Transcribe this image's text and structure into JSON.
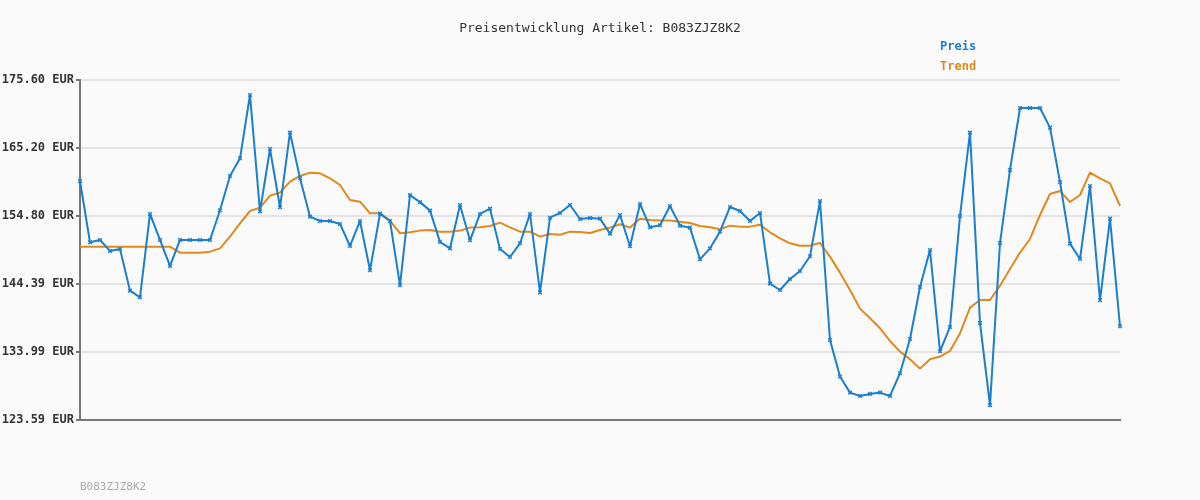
{
  "chart_data": {
    "type": "line",
    "title": "Preisentwicklung Artikel: B083ZJZ8K2",
    "categories": [
      null,
      null,
      null,
      null,
      null,
      null,
      null,
      null,
      null,
      null,
      null,
      null,
      null,
      null,
      null,
      null,
      null,
      null,
      null,
      null,
      null,
      null,
      null,
      null,
      null,
      null,
      null,
      null,
      null,
      null,
      null,
      null,
      null,
      null,
      null,
      null,
      null,
      null,
      null,
      null,
      null,
      null,
      null,
      null,
      null,
      null,
      null,
      null,
      null,
      null,
      null,
      null,
      null,
      null,
      null,
      null,
      null,
      null,
      null,
      null,
      null,
      null,
      null,
      null,
      null,
      null,
      null,
      null,
      null,
      null,
      null,
      null,
      null,
      null,
      null,
      null,
      null,
      null,
      null,
      null,
      null,
      null,
      null,
      null,
      null,
      null,
      null,
      null,
      null,
      null,
      null,
      null,
      null,
      null,
      null,
      null,
      null,
      null,
      null,
      null,
      null,
      null,
      null,
      null,
      null
    ],
    "series": [
      {
        "name": "Preis",
        "color": "#1a7fcf",
        "marker": "cross",
        "values": [
          160.15,
          150.77,
          151.13,
          149.45,
          149.75,
          143.38,
          142.36,
          155.11,
          151.13,
          147.15,
          151.13,
          151.13,
          151.13,
          151.13,
          155.67,
          160.92,
          163.62,
          173.31,
          155.51,
          165.05,
          156.13,
          167.55,
          160.56,
          154.7,
          154.03,
          154.03,
          153.58,
          150.21,
          154.03,
          146.49,
          155.16,
          154.03,
          144.2,
          157.99,
          156.92,
          155.62,
          150.82,
          149.85,
          156.48,
          151.08,
          155.11,
          155.92,
          149.75,
          148.53,
          150.62,
          155.11,
          143.12,
          154.54,
          155.26,
          156.48,
          154.34,
          154.49,
          154.39,
          152.1,
          154.95,
          150.16,
          156.64,
          153.07,
          153.37,
          156.33,
          153.32,
          153.02,
          148.17,
          149.85,
          152.4,
          156.18,
          155.56,
          154.03,
          155.26,
          144.45,
          143.48,
          145.16,
          146.39,
          148.63,
          157.09,
          135.83,
          130.23,
          127.78,
          127.27,
          127.58,
          127.78,
          127.27,
          130.74,
          135.99,
          143.94,
          149.6,
          134.1,
          137.82,
          154.8,
          167.55,
          138.43,
          125.84,
          150.67,
          161.84,
          171.32,
          171.32,
          171.32,
          168.31,
          160.0,
          150.57,
          148.22,
          159.39,
          141.9,
          154.39,
          137.92
        ]
      },
      {
        "name": "Trend",
        "color": "#e08a1e",
        "marker": "none",
        "values": [
          150.11,
          150.11,
          150.11,
          150.11,
          150.11,
          150.11,
          150.11,
          150.11,
          150.11,
          150.11,
          149.19,
          149.19,
          149.19,
          149.34,
          149.85,
          151.64,
          153.68,
          155.56,
          156.07,
          157.91,
          158.37,
          160.05,
          160.92,
          161.43,
          161.33,
          160.56,
          159.54,
          157.25,
          156.99,
          155.21,
          155.21,
          154.09,
          152.15,
          152.3,
          152.56,
          152.66,
          152.4,
          152.4,
          152.56,
          153.02,
          153.07,
          153.27,
          153.78,
          153.07,
          152.4,
          152.4,
          151.64,
          152.05,
          151.94,
          152.4,
          152.35,
          152.2,
          152.66,
          153.02,
          153.53,
          153.02,
          154.39,
          154.19,
          154.09,
          154.09,
          153.93,
          153.73,
          153.27,
          153.07,
          152.76,
          153.32,
          153.17,
          153.17,
          153.47,
          152.3,
          151.38,
          150.62,
          150.26,
          150.26,
          150.67,
          148.58,
          146.13,
          143.48,
          140.63,
          139.15,
          137.62,
          135.68,
          134.05,
          132.88,
          131.45,
          132.88,
          133.29,
          134.15,
          136.85,
          140.78,
          141.95,
          141.95,
          144.14,
          146.69,
          149.19,
          151.28,
          154.95,
          158.16,
          158.62,
          156.94,
          158.01,
          161.43,
          160.56,
          159.8,
          156.33
        ]
      }
    ],
    "ylim": [
      123.59,
      175.6
    ],
    "yticks": [
      {
        "value": 123.59,
        "label": "123.59 EUR"
      },
      {
        "value": 133.99,
        "label": "133.99 EUR"
      },
      {
        "value": 144.39,
        "label": "144.39 EUR"
      },
      {
        "value": 154.8,
        "label": "154.80 EUR"
      },
      {
        "value": 165.2,
        "label": "165.20 EUR"
      },
      {
        "value": 175.6,
        "label": "175.60 EUR"
      }
    ],
    "grid": "y",
    "legend": "top right",
    "tick_labels": "y",
    "annotations": [
      "B083ZJZ8K2"
    ]
  }
}
